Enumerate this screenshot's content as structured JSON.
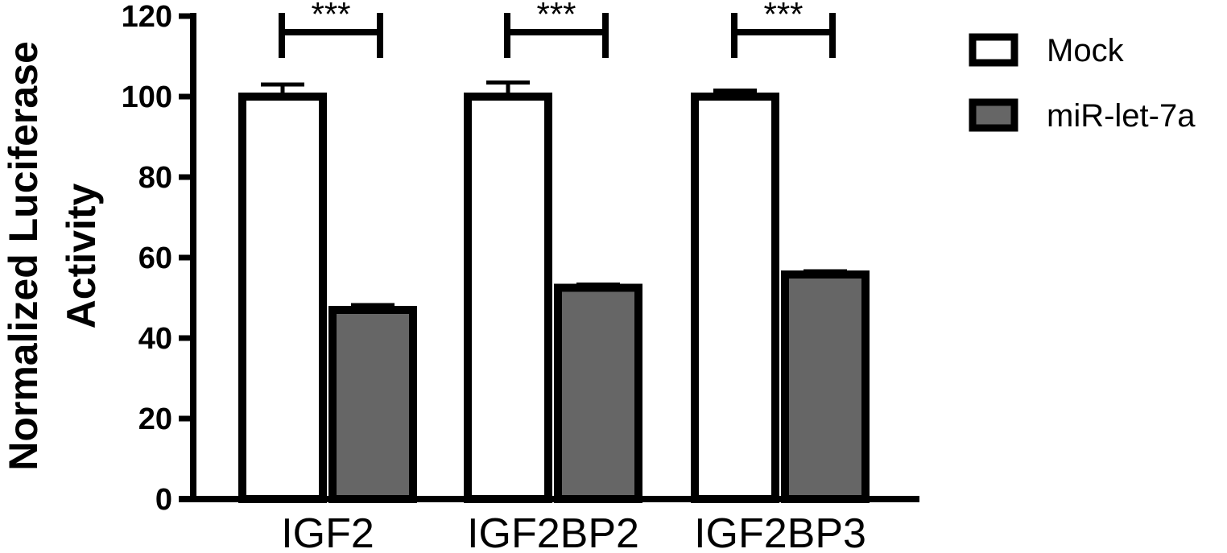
{
  "chart_data": {
    "type": "bar",
    "title": "",
    "xlabel": "",
    "ylabel_lines": [
      "Normalized Luciferase",
      "Activity"
    ],
    "ylim": [
      0,
      120
    ],
    "yticks": [
      "0",
      "20",
      "40",
      "60",
      "80",
      "100",
      "120"
    ],
    "categories": [
      "IGF2",
      "IGF2BP2",
      "IGF2BP3"
    ],
    "series": [
      {
        "name": "Mock",
        "values": [
          100,
          100,
          100
        ],
        "errors": [
          3,
          3.5,
          1.5
        ],
        "fill": "#ffffff",
        "stroke": "#000000"
      },
      {
        "name": "miR-let-7a",
        "values": [
          47,
          52.5,
          55.8
        ],
        "errors": [
          1.2,
          0.8,
          0.8
        ],
        "fill": "#666666",
        "stroke": "#000000"
      }
    ],
    "significance": [
      "***",
      "***",
      "***"
    ],
    "legend": {
      "position": "top-right",
      "entries": [
        "Mock",
        "miR-let-7a"
      ]
    },
    "grid": false
  }
}
